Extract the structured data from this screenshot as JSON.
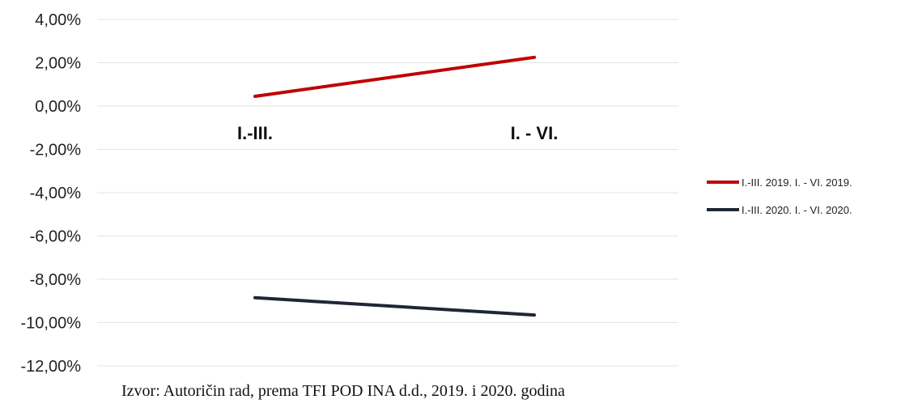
{
  "chart_data": {
    "type": "line",
    "categories": [
      "I.-III.",
      "I. - VI."
    ],
    "series": [
      {
        "name": "I.-III. 2019. I. - VI. 2019.",
        "values": [
          0.45,
          2.25
        ],
        "color": "#c00000"
      },
      {
        "name": "I.-III. 2020. I. - VI. 2020.",
        "values": [
          -8.85,
          -9.65
        ],
        "color": "#1f2635"
      }
    ],
    "ylim": [
      -12,
      4
    ],
    "yticks": [
      4,
      2,
      0,
      -2,
      -4,
      -6,
      -8,
      -10,
      -12
    ],
    "ytick_labels": [
      "4,00%",
      "2,00%",
      "0,00%",
      "-2,00%",
      "-4,00%",
      "-6,00%",
      "-8,00%",
      "-10,00%",
      "-12,00%"
    ],
    "grid": true,
    "legend_position": "right",
    "category_labels_position": "below zero line"
  },
  "source_text": "Izvor:  Autoričin rad, prema  TFI POD INA d.d., 2019. i 2020. godina"
}
